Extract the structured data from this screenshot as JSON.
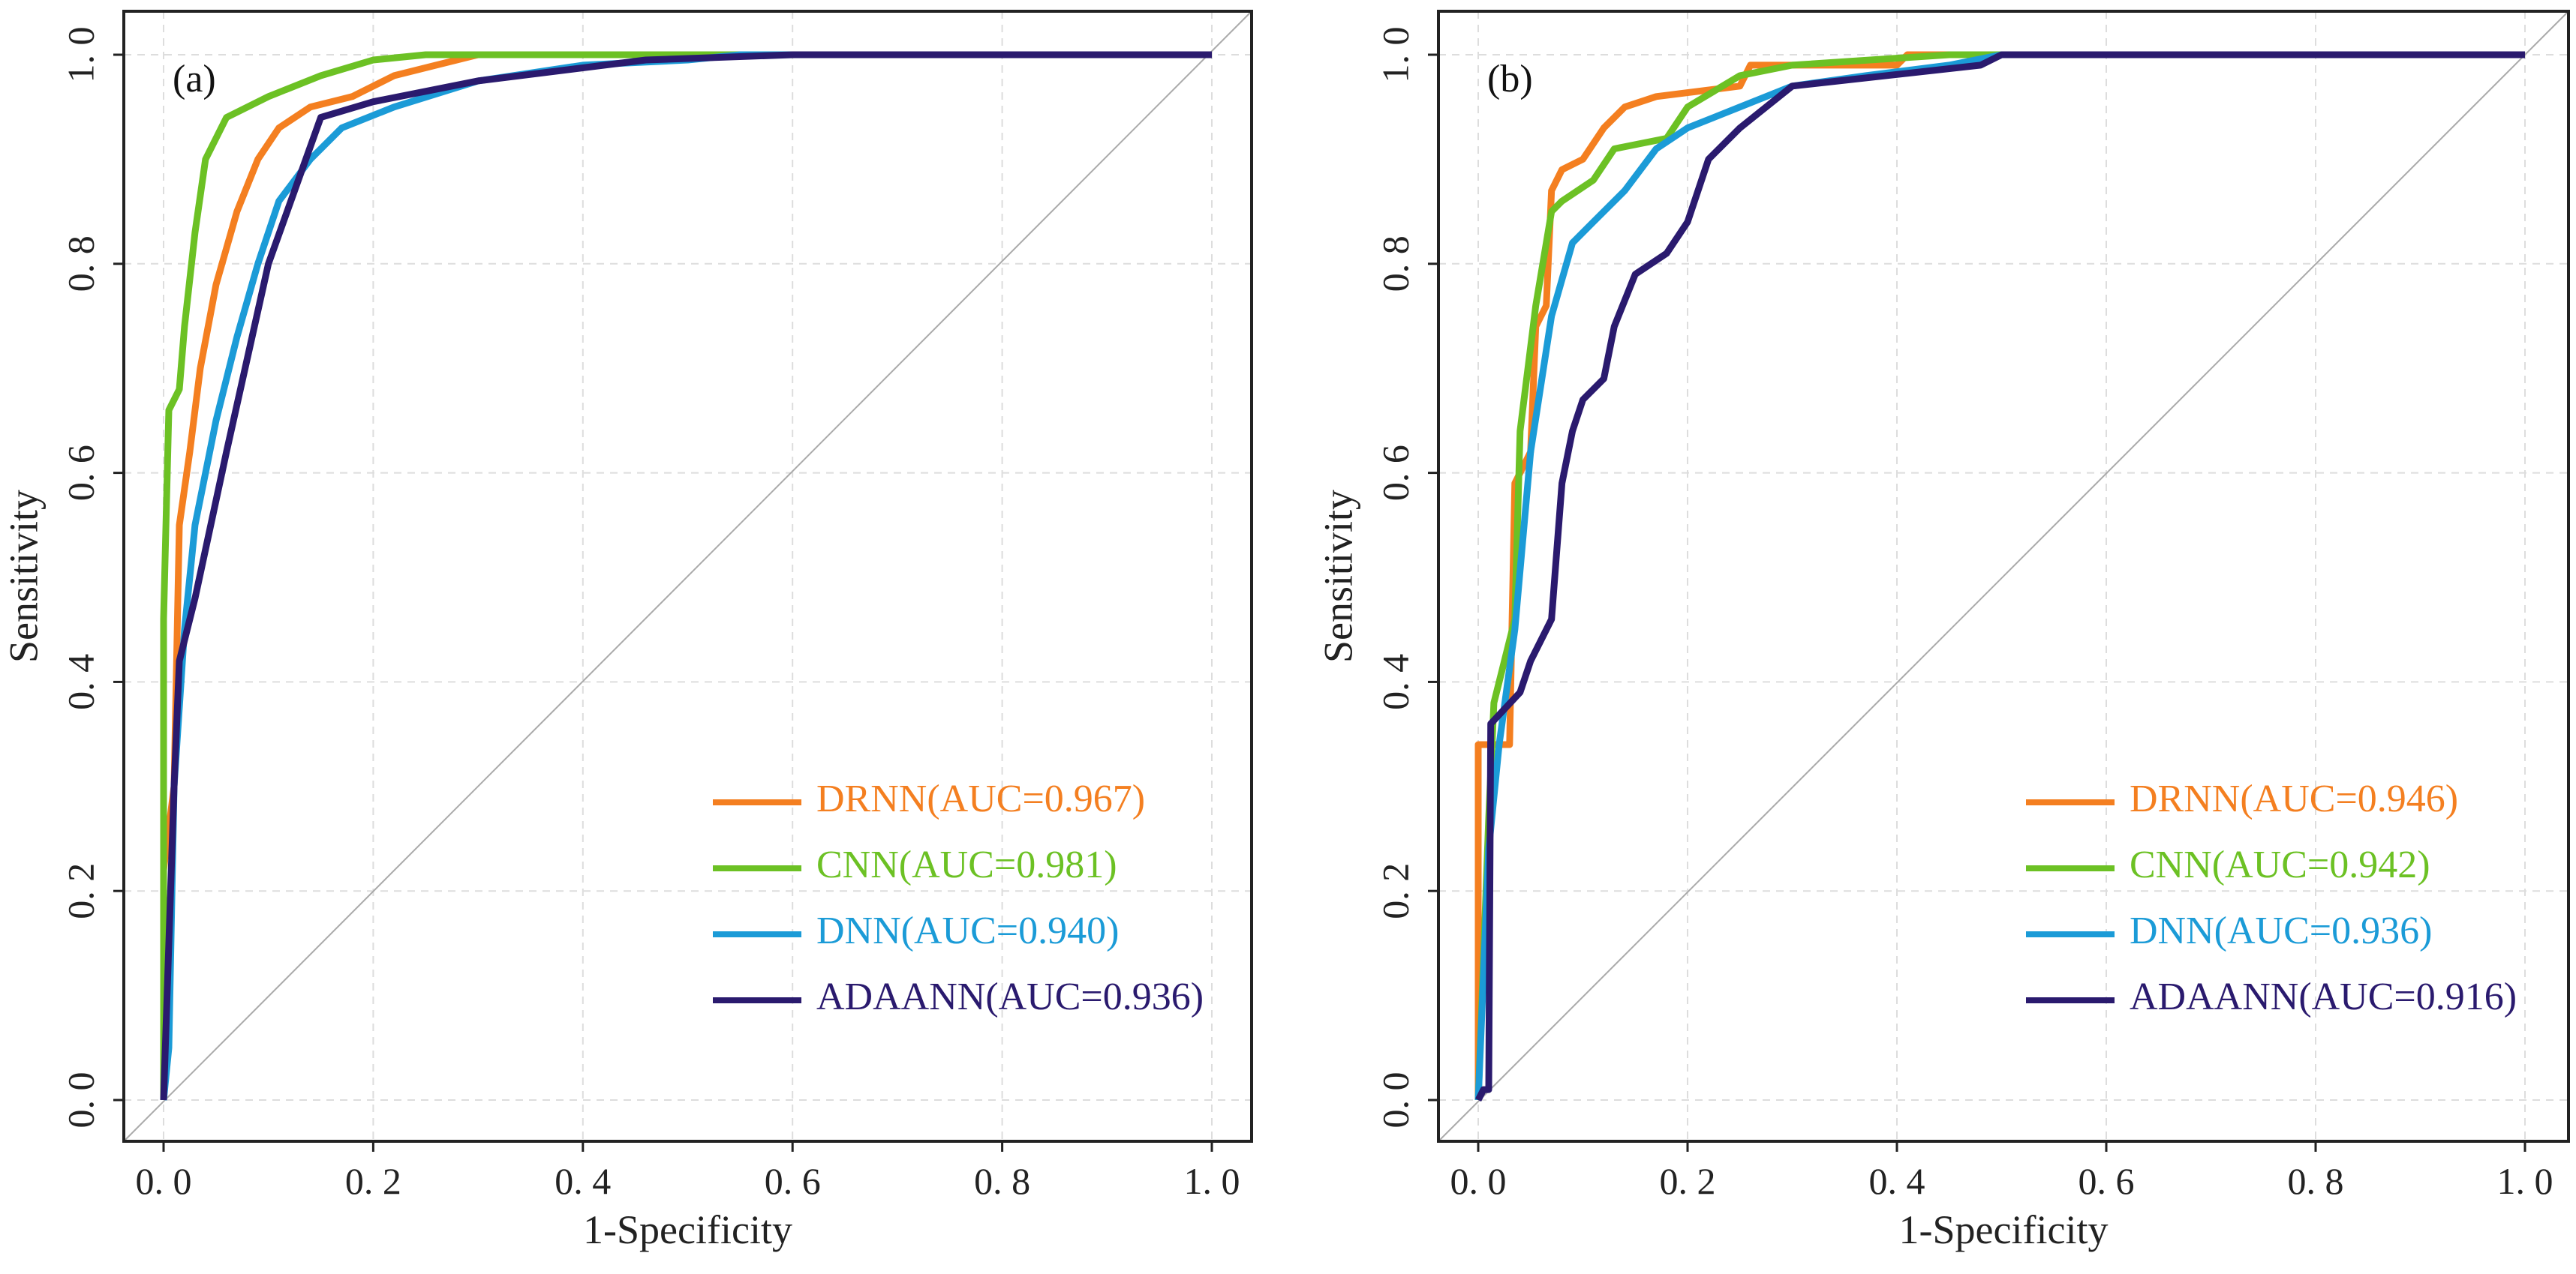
{
  "chart_data": [
    {
      "type": "line",
      "panel_label": "(a)",
      "xlabel": "1-Specificity",
      "ylabel": "Sensitivity",
      "xlim": [
        0,
        1
      ],
      "ylim": [
        0,
        1
      ],
      "xticks": [
        "0. 0",
        "0. 2",
        "0. 4",
        "0. 6",
        "0. 8",
        "1. 0"
      ],
      "yticks": [
        "0. 0",
        "0. 2",
        "0. 4",
        "0. 6",
        "0. 8",
        "1. 0"
      ],
      "grid": true,
      "legend_position": "bottom-right",
      "series": [
        {
          "name": "DRNN(AUC=0.967)",
          "color": "#f47f20",
          "points": [
            [
              0,
              0
            ],
            [
              0,
              0.22
            ],
            [
              0.01,
              0.3
            ],
            [
              0.015,
              0.55
            ],
            [
              0.025,
              0.62
            ],
            [
              0.035,
              0.7
            ],
            [
              0.05,
              0.78
            ],
            [
              0.07,
              0.85
            ],
            [
              0.09,
              0.9
            ],
            [
              0.11,
              0.93
            ],
            [
              0.14,
              0.95
            ],
            [
              0.18,
              0.96
            ],
            [
              0.22,
              0.98
            ],
            [
              0.26,
              0.99
            ],
            [
              0.3,
              1.0
            ],
            [
              1.0,
              1.0
            ]
          ]
        },
        {
          "name": "CNN(AUC=0.981)",
          "color": "#6cc124",
          "points": [
            [
              0,
              0
            ],
            [
              0,
              0.46
            ],
            [
              0.005,
              0.66
            ],
            [
              0.015,
              0.68
            ],
            [
              0.02,
              0.74
            ],
            [
              0.03,
              0.83
            ],
            [
              0.04,
              0.9
            ],
            [
              0.06,
              0.94
            ],
            [
              0.1,
              0.96
            ],
            [
              0.15,
              0.98
            ],
            [
              0.2,
              0.995
            ],
            [
              0.25,
              1.0
            ],
            [
              1.0,
              1.0
            ]
          ]
        },
        {
          "name": "DNN(AUC=0.940)",
          "color": "#1b9bd7",
          "points": [
            [
              0,
              0
            ],
            [
              0.005,
              0.05
            ],
            [
              0.01,
              0.3
            ],
            [
              0.02,
              0.45
            ],
            [
              0.03,
              0.55
            ],
            [
              0.05,
              0.65
            ],
            [
              0.07,
              0.73
            ],
            [
              0.09,
              0.8
            ],
            [
              0.11,
              0.86
            ],
            [
              0.14,
              0.9
            ],
            [
              0.17,
              0.93
            ],
            [
              0.22,
              0.95
            ],
            [
              0.3,
              0.975
            ],
            [
              0.4,
              0.99
            ],
            [
              0.5,
              0.995
            ],
            [
              0.55,
              1.0
            ],
            [
              1.0,
              1.0
            ]
          ]
        },
        {
          "name": "ADAANN(AUC=0.936)",
          "color": "#2a1a6e",
          "points": [
            [
              0,
              0
            ],
            [
              0.01,
              0.3
            ],
            [
              0.015,
              0.42
            ],
            [
              0.03,
              0.48
            ],
            [
              0.06,
              0.62
            ],
            [
              0.1,
              0.8
            ],
            [
              0.15,
              0.94
            ],
            [
              0.2,
              0.955
            ],
            [
              0.3,
              0.975
            ],
            [
              0.46,
              0.995
            ],
            [
              0.6,
              1.0
            ],
            [
              1.0,
              1.0
            ]
          ]
        }
      ]
    },
    {
      "type": "line",
      "panel_label": "(b)",
      "xlabel": "1-Specificity",
      "ylabel": "Sensitivity",
      "xlim": [
        0,
        1
      ],
      "ylim": [
        0,
        1
      ],
      "xticks": [
        "0. 0",
        "0. 2",
        "0. 4",
        "0. 6",
        "0. 8",
        "1. 0"
      ],
      "yticks": [
        "0. 0",
        "0. 2",
        "0. 4",
        "0. 6",
        "0. 8",
        "1. 0"
      ],
      "grid": true,
      "legend_position": "bottom-right",
      "series": [
        {
          "name": "DRNN(AUC=0.946)",
          "color": "#f47f20",
          "points": [
            [
              0,
              0
            ],
            [
              0,
              0.34
            ],
            [
              0.03,
              0.34
            ],
            [
              0.035,
              0.59
            ],
            [
              0.05,
              0.62
            ],
            [
              0.055,
              0.74
            ],
            [
              0.065,
              0.76
            ],
            [
              0.07,
              0.87
            ],
            [
              0.08,
              0.89
            ],
            [
              0.1,
              0.9
            ],
            [
              0.12,
              0.93
            ],
            [
              0.14,
              0.95
            ],
            [
              0.17,
              0.96
            ],
            [
              0.25,
              0.97
            ],
            [
              0.26,
              0.99
            ],
            [
              0.4,
              0.99
            ],
            [
              0.41,
              1.0
            ],
            [
              1.0,
              1.0
            ]
          ]
        },
        {
          "name": "CNN(AUC=0.942)",
          "color": "#6cc124",
          "points": [
            [
              0,
              0
            ],
            [
              0.01,
              0.27
            ],
            [
              0.015,
              0.38
            ],
            [
              0.02,
              0.4
            ],
            [
              0.035,
              0.46
            ],
            [
              0.04,
              0.64
            ],
            [
              0.055,
              0.76
            ],
            [
              0.07,
              0.85
            ],
            [
              0.08,
              0.86
            ],
            [
              0.11,
              0.88
            ],
            [
              0.13,
              0.91
            ],
            [
              0.18,
              0.92
            ],
            [
              0.2,
              0.95
            ],
            [
              0.25,
              0.98
            ],
            [
              0.3,
              0.99
            ],
            [
              0.45,
              1.0
            ],
            [
              1.0,
              1.0
            ]
          ]
        },
        {
          "name": "DNN(AUC=0.936)",
          "color": "#1b9bd7",
          "points": [
            [
              0,
              0
            ],
            [
              0.01,
              0.24
            ],
            [
              0.02,
              0.34
            ],
            [
              0.035,
              0.45
            ],
            [
              0.05,
              0.62
            ],
            [
              0.07,
              0.75
            ],
            [
              0.09,
              0.82
            ],
            [
              0.11,
              0.84
            ],
            [
              0.14,
              0.87
            ],
            [
              0.17,
              0.91
            ],
            [
              0.2,
              0.93
            ],
            [
              0.25,
              0.95
            ],
            [
              0.3,
              0.97
            ],
            [
              0.37,
              0.98
            ],
            [
              0.45,
              0.99
            ],
            [
              0.5,
              1.0
            ],
            [
              1.0,
              1.0
            ]
          ]
        },
        {
          "name": "ADAANN(AUC=0.916)",
          "color": "#2a1a6e",
          "points": [
            [
              0,
              0
            ],
            [
              0.005,
              0.01
            ],
            [
              0.01,
              0.01
            ],
            [
              0.012,
              0.36
            ],
            [
              0.04,
              0.39
            ],
            [
              0.05,
              0.42
            ],
            [
              0.07,
              0.46
            ],
            [
              0.08,
              0.59
            ],
            [
              0.09,
              0.64
            ],
            [
              0.1,
              0.67
            ],
            [
              0.12,
              0.69
            ],
            [
              0.13,
              0.74
            ],
            [
              0.15,
              0.79
            ],
            [
              0.18,
              0.81
            ],
            [
              0.2,
              0.84
            ],
            [
              0.22,
              0.9
            ],
            [
              0.25,
              0.93
            ],
            [
              0.3,
              0.97
            ],
            [
              0.48,
              0.99
            ],
            [
              0.5,
              1.0
            ],
            [
              1.0,
              1.0
            ]
          ]
        }
      ]
    }
  ]
}
